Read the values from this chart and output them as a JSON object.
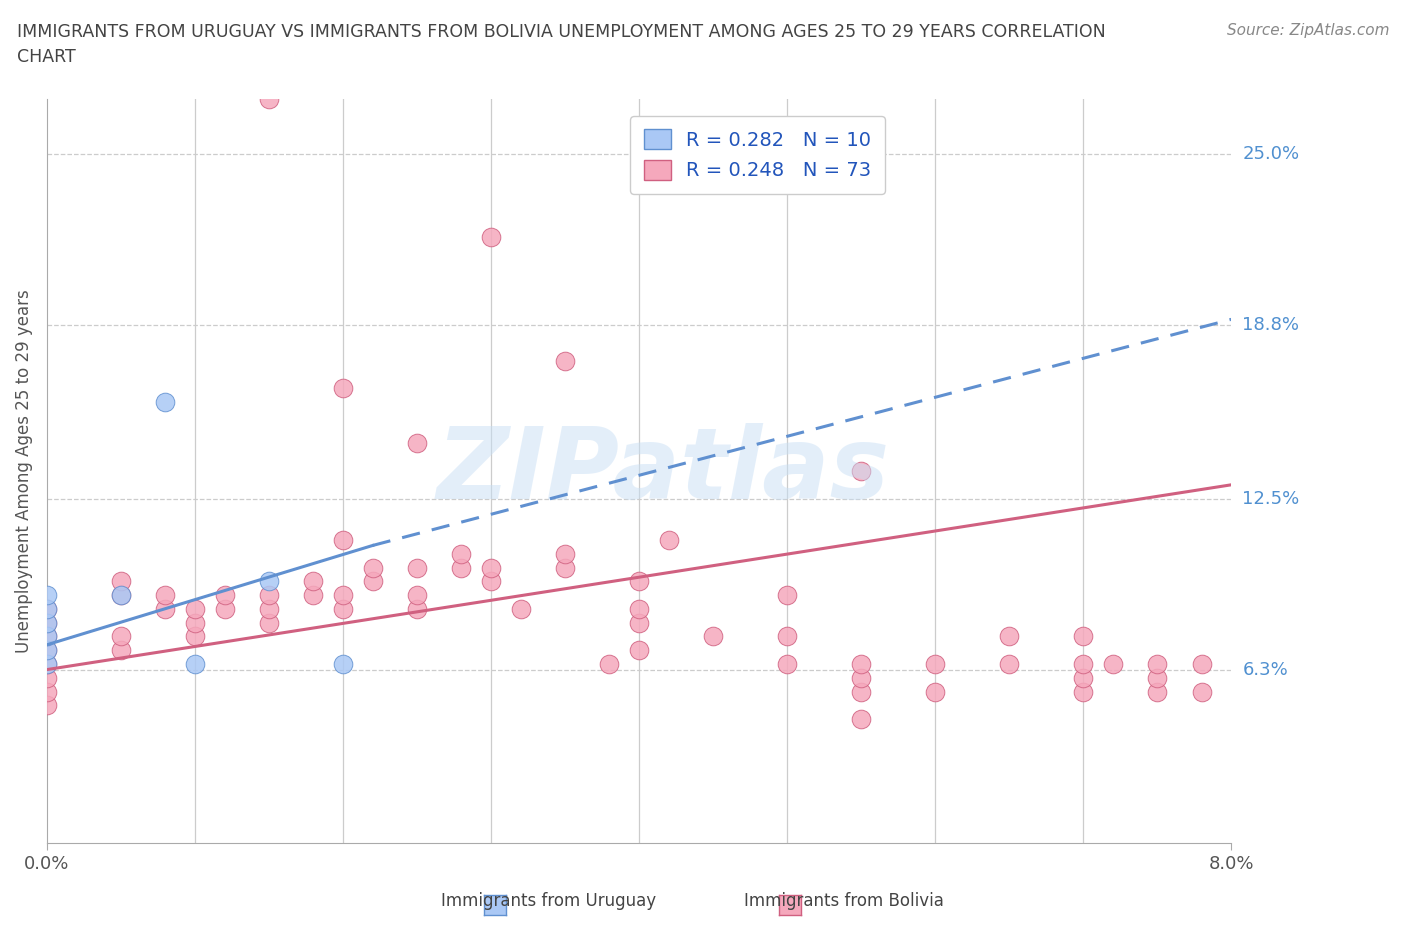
{
  "title": "IMMIGRANTS FROM URUGUAY VS IMMIGRANTS FROM BOLIVIA UNEMPLOYMENT AMONG AGES 25 TO 29 YEARS CORRELATION\nCHART",
  "source_text": "Source: ZipAtlas.com",
  "ylabel": "Unemployment Among Ages 25 to 29 years",
  "xlim": [
    0.0,
    0.08
  ],
  "ylim": [
    0.0,
    0.27
  ],
  "ytick_labels_right": [
    "25.0%",
    "18.8%",
    "12.5%",
    "6.3%"
  ],
  "ytick_vals_right": [
    0.25,
    0.188,
    0.125,
    0.063
  ],
  "watermark": "ZIPatlas",
  "uruguay_color": "#aac8f5",
  "bolivia_color": "#f5a8bc",
  "uruguay_edge": "#6090d0",
  "bolivia_edge": "#d06080",
  "trend_uruguay_color": "#6090d0",
  "trend_bolivia_color": "#d06080",
  "background_color": "#ffffff",
  "grid_color": "#cccccc",
  "title_color": "#444444",
  "axis_color": "#555555",
  "right_label_color": "#5090d0",
  "uruguay_scatter_x": [
    0.0,
    0.0,
    0.0,
    0.0,
    0.0,
    0.0,
    0.005,
    0.008,
    0.01,
    0.015,
    0.02
  ],
  "uruguay_scatter_y": [
    0.065,
    0.07,
    0.075,
    0.08,
    0.085,
    0.09,
    0.09,
    0.16,
    0.065,
    0.095,
    0.065
  ],
  "bolivia_scatter_x": [
    0.0,
    0.0,
    0.0,
    0.0,
    0.0,
    0.0,
    0.0,
    0.0,
    0.005,
    0.005,
    0.005,
    0.005,
    0.008,
    0.008,
    0.01,
    0.01,
    0.01,
    0.012,
    0.012,
    0.015,
    0.015,
    0.015,
    0.018,
    0.018,
    0.02,
    0.02,
    0.02,
    0.022,
    0.022,
    0.025,
    0.025,
    0.025,
    0.028,
    0.028,
    0.03,
    0.03,
    0.032,
    0.035,
    0.035,
    0.038,
    0.04,
    0.04,
    0.04,
    0.04,
    0.042,
    0.045,
    0.05,
    0.05,
    0.05,
    0.055,
    0.055,
    0.055,
    0.055,
    0.06,
    0.06,
    0.065,
    0.065,
    0.07,
    0.07,
    0.07,
    0.07,
    0.072,
    0.075,
    0.075,
    0.075,
    0.078,
    0.078
  ],
  "bolivia_scatter_y": [
    0.05,
    0.055,
    0.06,
    0.065,
    0.07,
    0.075,
    0.08,
    0.085,
    0.07,
    0.075,
    0.09,
    0.095,
    0.085,
    0.09,
    0.075,
    0.08,
    0.085,
    0.085,
    0.09,
    0.08,
    0.085,
    0.09,
    0.09,
    0.095,
    0.085,
    0.09,
    0.11,
    0.095,
    0.1,
    0.085,
    0.09,
    0.1,
    0.1,
    0.105,
    0.095,
    0.1,
    0.085,
    0.1,
    0.105,
    0.065,
    0.07,
    0.08,
    0.085,
    0.095,
    0.11,
    0.075,
    0.065,
    0.075,
    0.09,
    0.045,
    0.055,
    0.06,
    0.065,
    0.055,
    0.065,
    0.065,
    0.075,
    0.055,
    0.06,
    0.065,
    0.075,
    0.065,
    0.055,
    0.06,
    0.065,
    0.055,
    0.065
  ],
  "bolivia_outlier_x": [
    0.015,
    0.03,
    0.035,
    0.02,
    0.025,
    0.055
  ],
  "bolivia_outlier_y": [
    0.27,
    0.22,
    0.175,
    0.165,
    0.145,
    0.135
  ],
  "trend_uy_x0": 0.0,
  "trend_uy_y0": 0.072,
  "trend_uy_x1": 0.022,
  "trend_uy_y1": 0.108,
  "trend_uy_ext_x1": 0.08,
  "trend_uy_ext_y1": 0.19,
  "trend_bo_x0": 0.0,
  "trend_bo_y0": 0.063,
  "trend_bo_x1": 0.08,
  "trend_bo_y1": 0.13
}
